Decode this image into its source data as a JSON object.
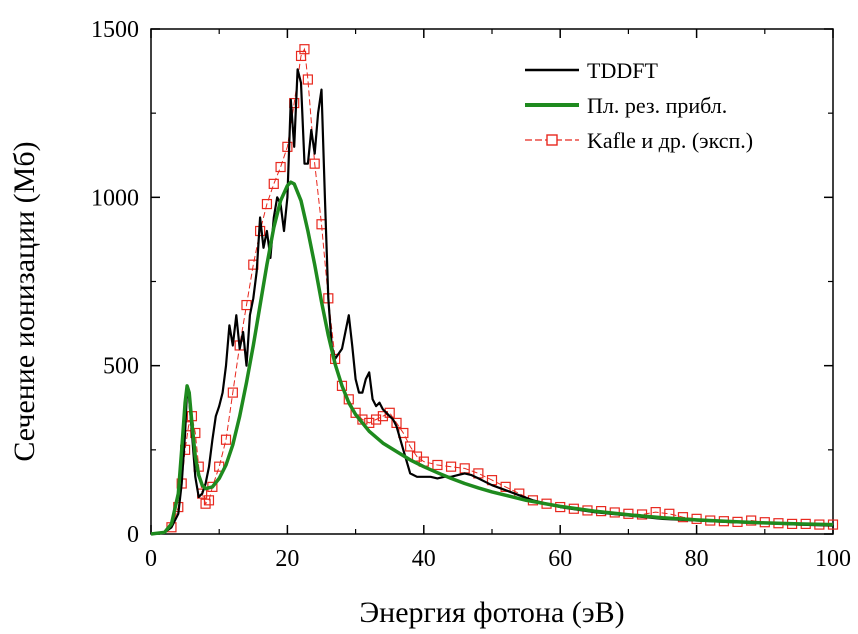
{
  "chart_data": {
    "type": "line",
    "xlabel": "Энергия фотона (эВ)",
    "ylabel": "Сечение ионизации (Мб)",
    "xlim": [
      0,
      100
    ],
    "ylim": [
      0,
      1500
    ],
    "xticks": [
      "0",
      "20",
      "40",
      "60",
      "80",
      "100"
    ],
    "yticks": [
      "0",
      "500",
      "1000",
      "1500"
    ],
    "grid": false,
    "legend_position": "top-right",
    "series": [
      {
        "name": "TDDFT",
        "color": "#000000",
        "marker": "none",
        "x": [
          2,
          3,
          4,
          4.5,
          5,
          5.3,
          5.6,
          6,
          6.5,
          7,
          7.5,
          8,
          8.5,
          9,
          9.5,
          10,
          10.5,
          11,
          11.5,
          12,
          12.5,
          13,
          13.5,
          14,
          14.5,
          15,
          15.5,
          16,
          16.5,
          17,
          17.5,
          18,
          18.5,
          19,
          19.5,
          20,
          20.5,
          21,
          21.5,
          22,
          22.5,
          23,
          23.5,
          24,
          24.5,
          25,
          25.5,
          26,
          26.5,
          27,
          28,
          28.5,
          29,
          29.5,
          30,
          30.5,
          31,
          31.5,
          32,
          32.5,
          33,
          33.5,
          34,
          34.5,
          35,
          35.5,
          36,
          37,
          38,
          39,
          40,
          41,
          42,
          43,
          44,
          45,
          46,
          47,
          48,
          49,
          50,
          52,
          54,
          56,
          58,
          60,
          65,
          70,
          75,
          80,
          85,
          90,
          95,
          100
        ],
        "y": [
          5,
          20,
          60,
          150,
          300,
          430,
          400,
          300,
          170,
          110,
          120,
          150,
          200,
          280,
          350,
          380,
          420,
          500,
          620,
          560,
          650,
          550,
          600,
          500,
          650,
          700,
          780,
          940,
          850,
          900,
          820,
          940,
          1000,
          980,
          900,
          1000,
          1290,
          1150,
          1380,
          1340,
          1100,
          1100,
          1200,
          1130,
          1250,
          1320,
          1000,
          700,
          560,
          520,
          550,
          600,
          650,
          560,
          460,
          420,
          420,
          460,
          480,
          400,
          380,
          390,
          370,
          360,
          350,
          340,
          320,
          250,
          180,
          170,
          170,
          170,
          165,
          170,
          170,
          175,
          180,
          175,
          165,
          155,
          145,
          130,
          115,
          100,
          90,
          80,
          65,
          55,
          45,
          40,
          35,
          32,
          28,
          25
        ]
      },
      {
        "name": "Пл. рез. прибл.",
        "color": "#1e8a1e",
        "marker": "none",
        "x": [
          0,
          2,
          3,
          4,
          4.5,
          5,
          5.3,
          5.6,
          6,
          6.5,
          7,
          7.5,
          8,
          9,
          10,
          11,
          12,
          13,
          14,
          15,
          16,
          17,
          18,
          19,
          20,
          20.5,
          21,
          22,
          23,
          24,
          25,
          26,
          27,
          28,
          29,
          30,
          32,
          34,
          36,
          38,
          40,
          42,
          44,
          46,
          48,
          50,
          55,
          60,
          65,
          70,
          75,
          80,
          85,
          90,
          95,
          100
        ],
        "y": [
          0,
          5,
          30,
          120,
          250,
          390,
          440,
          420,
          330,
          230,
          175,
          145,
          135,
          140,
          165,
          205,
          265,
          350,
          450,
          560,
          680,
          800,
          910,
          990,
          1035,
          1045,
          1040,
          990,
          900,
          800,
          690,
          590,
          505,
          440,
          390,
          355,
          305,
          270,
          245,
          220,
          200,
          182,
          165,
          150,
          137,
          125,
          100,
          82,
          68,
          57,
          48,
          42,
          37,
          33,
          30,
          28
        ]
      },
      {
        "name": "Kafle и др. (эксп.)",
        "color": "#e8281e",
        "marker": "square",
        "x": [
          3,
          4,
          4.5,
          5,
          5.5,
          6,
          6.5,
          7,
          7.5,
          8,
          8.5,
          9,
          10,
          11,
          12,
          13,
          14,
          15,
          16,
          17,
          18,
          19,
          20,
          21,
          22,
          22.5,
          23,
          24,
          25,
          26,
          27,
          28,
          29,
          30,
          31,
          32,
          33,
          34,
          35,
          36,
          37,
          38,
          39,
          40,
          42,
          44,
          46,
          48,
          50,
          52,
          54,
          56,
          58,
          60,
          62,
          64,
          66,
          68,
          70,
          72,
          74,
          76,
          78,
          80,
          82,
          84,
          86,
          88,
          90,
          92,
          94,
          96,
          98,
          100
        ],
        "y": [
          20,
          80,
          150,
          250,
          320,
          350,
          300,
          200,
          120,
          90,
          100,
          140,
          200,
          280,
          420,
          560,
          680,
          800,
          900,
          980,
          1040,
          1090,
          1150,
          1280,
          1420,
          1440,
          1350,
          1100,
          920,
          700,
          520,
          440,
          400,
          360,
          340,
          330,
          340,
          350,
          360,
          330,
          300,
          260,
          230,
          215,
          205,
          200,
          195,
          180,
          160,
          140,
          120,
          100,
          90,
          80,
          75,
          70,
          68,
          64,
          60,
          58,
          65,
          60,
          50,
          45,
          40,
          38,
          36,
          40,
          35,
          32,
          30,
          30,
          28,
          28
        ]
      }
    ]
  }
}
